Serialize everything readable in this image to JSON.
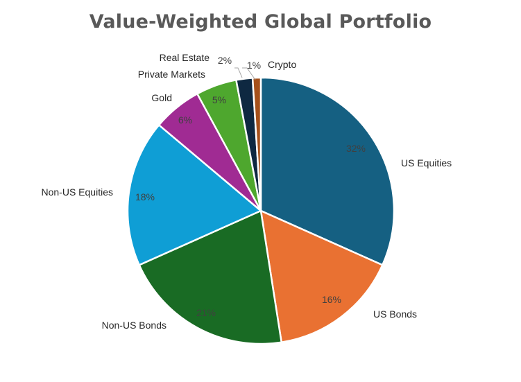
{
  "chart_data": {
    "type": "pie",
    "title": "Value-Weighted Global Portfolio",
    "slices": [
      {
        "name": "US Equities",
        "value": 32,
        "label": "32%",
        "color": "#156082"
      },
      {
        "name": "US Bonds",
        "value": 16,
        "label": "16%",
        "color": "#E97132"
      },
      {
        "name": "Non-US Bonds",
        "value": 21,
        "label": "21%",
        "color": "#196B24"
      },
      {
        "name": "Non-US Equities",
        "value": 18,
        "label": "18%",
        "color": "#0F9ED5"
      },
      {
        "name": "Gold",
        "value": 6,
        "label": "6%",
        "color": "#A02B93"
      },
      {
        "name": "Private Markets",
        "value": 5,
        "label": "5%",
        "color": "#4EA72E"
      },
      {
        "name": "Real Estate",
        "value": 2,
        "label": "2%",
        "color": "#0E2841"
      },
      {
        "name": "Crypto",
        "value": 1,
        "label": "1%",
        "color": "#A5501A"
      }
    ],
    "legend": "none",
    "label_placement": "category outside, percentage inside"
  }
}
